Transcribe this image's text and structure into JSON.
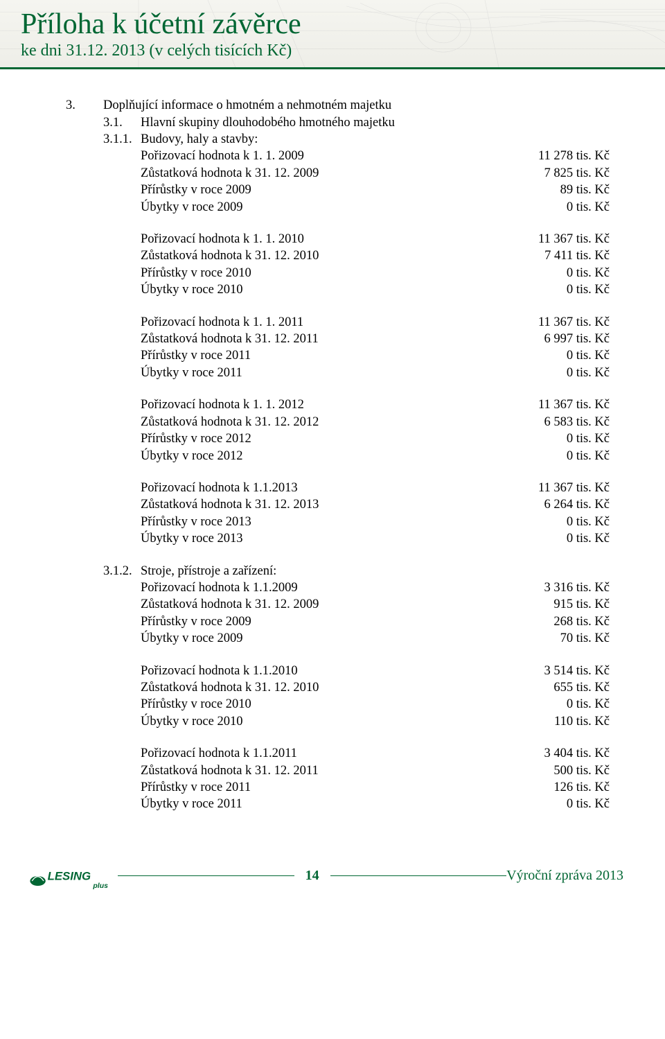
{
  "header": {
    "title": "Příloha k účetní závěrce",
    "subtitle": "ke dni 31.12. 2013 (v celých tisících Kč)",
    "accent_color": "#006633"
  },
  "main": {
    "section_number": "3.",
    "section_text": "Doplňující informace o hmotném a nehmotném majetku",
    "sub31_number": "3.1.",
    "sub31_text": "Hlavní skupiny dlouhodobého hmotného majetku",
    "sub311_number": "3.1.1.",
    "sub311_text": "Budovy, haly a stavby:",
    "sub312_number": "3.1.2.",
    "sub312_text": "Stroje, přístroje a zařízení:",
    "buildings": [
      {
        "rows": [
          {
            "label": "Pořizovací hodnota k 1. 1. 2009",
            "value": "11 278 tis. Kč"
          },
          {
            "label": "Zůstatková hodnota k 31. 12. 2009",
            "value": "7 825 tis. Kč"
          },
          {
            "label": "Přírůstky v roce 2009",
            "value": "89 tis. Kč"
          },
          {
            "label": "Úbytky v roce 2009",
            "value": "0 tis. Kč"
          }
        ]
      },
      {
        "rows": [
          {
            "label": "Pořizovací hodnota k 1. 1. 2010",
            "value": "11 367 tis. Kč"
          },
          {
            "label": "Zůstatková hodnota k 31. 12. 2010",
            "value": "7 411 tis. Kč"
          },
          {
            "label": "Přírůstky v roce 2010",
            "value": "0 tis. Kč"
          },
          {
            "label": "Úbytky v roce 2010",
            "value": "0 tis. Kč"
          }
        ]
      },
      {
        "rows": [
          {
            "label": "Pořizovací hodnota k 1. 1. 2011",
            "value": "11 367 tis. Kč"
          },
          {
            "label": "Zůstatková hodnota k 31. 12. 2011",
            "value": "6 997 tis. Kč"
          },
          {
            "label": "Přírůstky v roce 2011",
            "value": "0 tis. Kč"
          },
          {
            "label": "Úbytky v roce 2011",
            "value": "0 tis. Kč"
          }
        ]
      },
      {
        "rows": [
          {
            "label": "Pořizovací hodnota k 1. 1. 2012",
            "value": "11 367 tis. Kč"
          },
          {
            "label": "Zůstatková hodnota k 31. 12. 2012",
            "value": "6 583 tis. Kč"
          },
          {
            "label": "Přírůstky v roce 2012",
            "value": "0 tis. Kč"
          },
          {
            "label": "Úbytky v roce 2012",
            "value": "0 tis. Kč"
          }
        ]
      },
      {
        "rows": [
          {
            "label": "Pořizovací hodnota k 1.1.2013",
            "value": "11 367 tis. Kč"
          },
          {
            "label": "Zůstatková hodnota k 31. 12. 2013",
            "value": "6 264 tis. Kč"
          },
          {
            "label": "Přírůstky v roce 2013",
            "value": "0 tis. Kč"
          },
          {
            "label": "Úbytky v roce 2013",
            "value": "0 tis. Kč"
          }
        ]
      }
    ],
    "machines": [
      {
        "rows": [
          {
            "label": "Pořizovací hodnota k 1.1.2009",
            "value": "3 316 tis. Kč"
          },
          {
            "label": "Zůstatková hodnota k 31. 12. 2009",
            "value": "915 tis. Kč"
          },
          {
            "label": "Přírůstky v roce 2009",
            "value": "268 tis. Kč"
          },
          {
            "label": "Úbytky v roce 2009",
            "value": "70 tis. Kč"
          }
        ]
      },
      {
        "rows": [
          {
            "label": "Pořizovací hodnota k 1.1.2010",
            "value": "3 514 tis. Kč"
          },
          {
            "label": "Zůstatková hodnota k 31. 12. 2010",
            "value": "655 tis. Kč"
          },
          {
            "label": "Přírůstky v roce 2010",
            "value": "0 tis. Kč"
          },
          {
            "label": "Úbytky v roce 2010",
            "value": "110 tis. Kč"
          }
        ]
      },
      {
        "rows": [
          {
            "label": "Pořizovací hodnota k 1.1.2011",
            "value": "3 404 tis. Kč"
          },
          {
            "label": "Zůstatková hodnota k 31. 12. 2011",
            "value": "500 tis. Kč"
          },
          {
            "label": "Přírůstky v roce 2011",
            "value": "126 tis. Kč"
          },
          {
            "label": "Úbytky v roce 2011",
            "value": "0 tis. Kč"
          }
        ]
      }
    ]
  },
  "footer": {
    "logo_main": "LESING",
    "logo_sub": "plus",
    "logo_color": "#006633",
    "page_number": "14",
    "right_text": "Výroční zpráva 2013"
  }
}
